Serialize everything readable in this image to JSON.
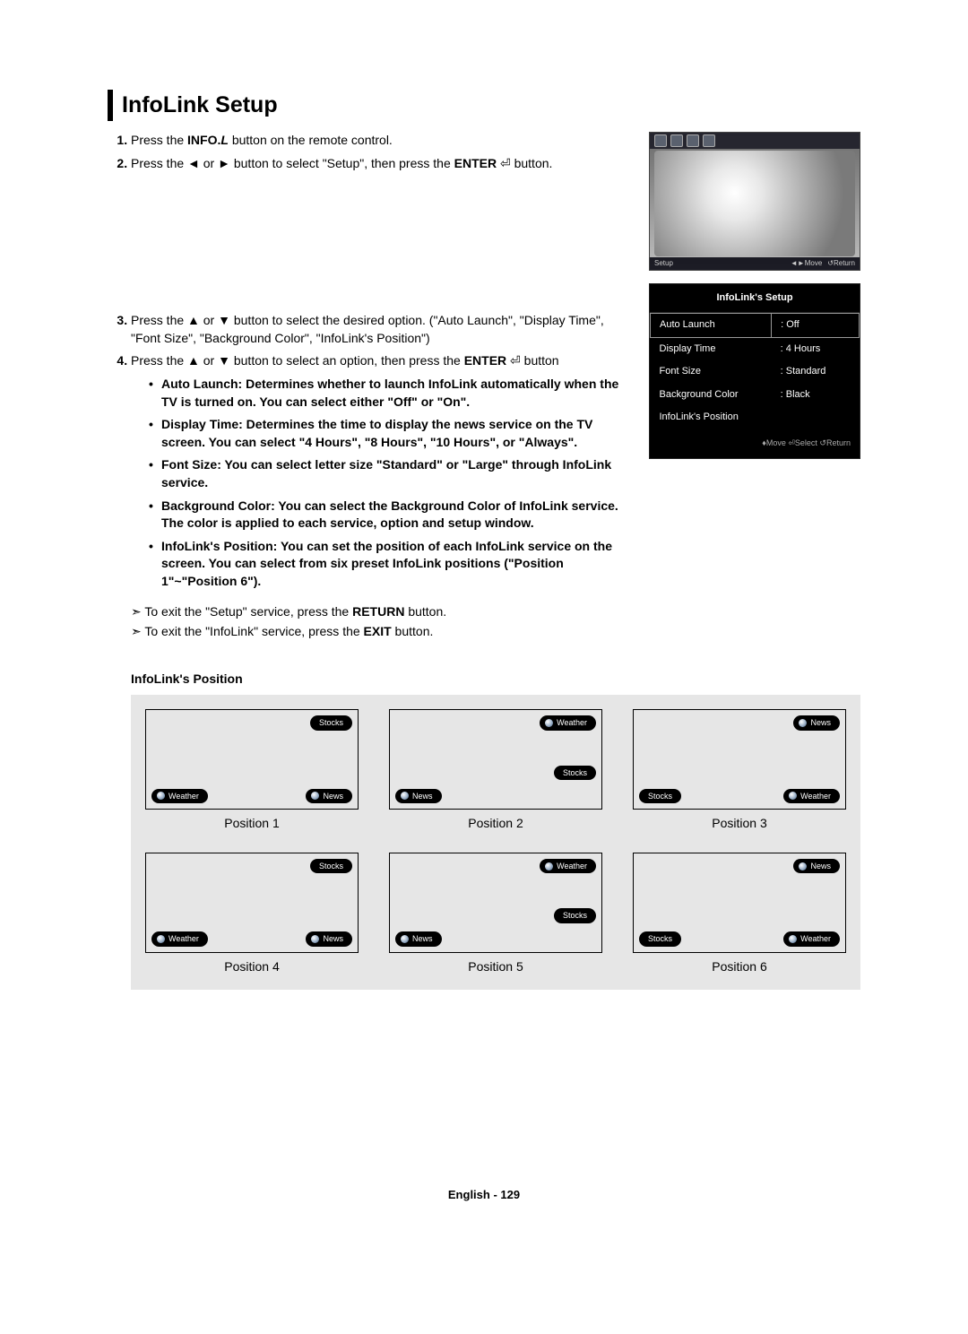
{
  "title": "InfoLink Setup",
  "steps": [
    {
      "html": "Press the <b>INFO.<i>L</i></b> button on the remote control."
    },
    {
      "html": "Press the ◄ or ► button to select \"Setup\", then press the <b>ENTER</b> ⏎ button."
    },
    {
      "html": "Press the ▲ or ▼ button to select the desired option. (\"Auto Launch\", \"Display Time\", \"Font Size\", \"Background Color\", \"InfoLink's Position\")"
    },
    {
      "html": "Press the ▲ or ▼ button to select an option, then press the <b>ENTER</b> ⏎ button"
    }
  ],
  "options": [
    {
      "html": "<b>Auto Launch</b>: Determines whether to launch InfoLink automatically when the TV is turned on. You can select either \"Off\" or \"On\"."
    },
    {
      "html": "<b>Display Time</b>: Determines the time to display the news service on the TV screen. You can select \"4 Hours\", \"8 Hours\", \"10 Hours\", or \"Always\"."
    },
    {
      "html": "<b>Font Size</b>: You can select letter size \"Standard\" or \"Large\" through InfoLink service."
    },
    {
      "html": "<b>Background Color</b>: You can select the Background Color of InfoLink service. The color is applied to each service, option and setup window."
    },
    {
      "html": "<b>InfoLink's Position</b>: You can set the position of each InfoLink service on the screen. You can select from six preset InfoLink positions (\"Position 1\"~\"Position 6\")."
    }
  ],
  "exit_notes": [
    {
      "html": "To exit the \"Setup\" service, press the <b>RETURN</b> button."
    },
    {
      "html": "To exit the \"InfoLink\" service, press the <b>EXIT</b> button."
    }
  ],
  "tv_bar": {
    "setup": "Setup",
    "move": "◄►Move",
    "return": "↺Return"
  },
  "osd": {
    "title": "InfoLink's Setup",
    "rows": [
      {
        "label": "Auto Launch",
        "value": ": Off"
      },
      {
        "label": "Display Time",
        "value": ": 4 Hours"
      },
      {
        "label": "Font Size",
        "value": ": Standard"
      },
      {
        "label": "Background Color",
        "value": ": Black"
      },
      {
        "label": "InfoLink's Position",
        "value": ""
      }
    ],
    "footer": "♦Move  ⏎Select  ↺Return"
  },
  "section_sub": "InfoLink's Position",
  "chip_labels": {
    "stocks": "Stocks",
    "weather": "Weather",
    "news": "News"
  },
  "positions": [
    {
      "label": "Position 1",
      "chips": [
        {
          "type": "stocks",
          "style": "top:6px; right:6px;"
        },
        {
          "type": "weather",
          "style": "bottom:6px; left:6px;"
        },
        {
          "type": "news",
          "style": "bottom:6px; right:6px;"
        }
      ]
    },
    {
      "label": "Position 2",
      "chips": [
        {
          "type": "weather",
          "style": "top:6px; right:6px;"
        },
        {
          "type": "stocks",
          "style": "bottom:32px; right:6px;"
        },
        {
          "type": "news",
          "style": "bottom:6px; left:6px;"
        }
      ]
    },
    {
      "label": "Position 3",
      "chips": [
        {
          "type": "news",
          "style": "top:6px; right:6px;"
        },
        {
          "type": "stocks",
          "style": "bottom:6px; left:6px;"
        },
        {
          "type": "weather",
          "style": "bottom:6px; right:6px;"
        }
      ]
    },
    {
      "label": "Position 4",
      "chips": [
        {
          "type": "stocks",
          "style": "top:6px; right:6px;"
        },
        {
          "type": "weather",
          "style": "bottom:6px; left:6px;"
        },
        {
          "type": "news",
          "style": "bottom:6px; right:6px;"
        }
      ]
    },
    {
      "label": "Position 5",
      "chips": [
        {
          "type": "weather",
          "style": "top:6px; right:6px;"
        },
        {
          "type": "stocks",
          "style": "bottom:32px; right:6px;"
        },
        {
          "type": "news",
          "style": "bottom:6px; left:6px;"
        }
      ]
    },
    {
      "label": "Position 6",
      "chips": [
        {
          "type": "news",
          "style": "top:6px; right:6px;"
        },
        {
          "type": "stocks",
          "style": "bottom:6px; left:6px;"
        },
        {
          "type": "weather",
          "style": "bottom:6px; right:6px;"
        }
      ]
    }
  ],
  "footer": {
    "lang": "English - ",
    "page": "129"
  },
  "colors": {
    "page_bg": "#ffffff",
    "panel_bg": "#e6e6e6",
    "osd_bg": "#000000",
    "osd_fg": "#ffffff"
  }
}
